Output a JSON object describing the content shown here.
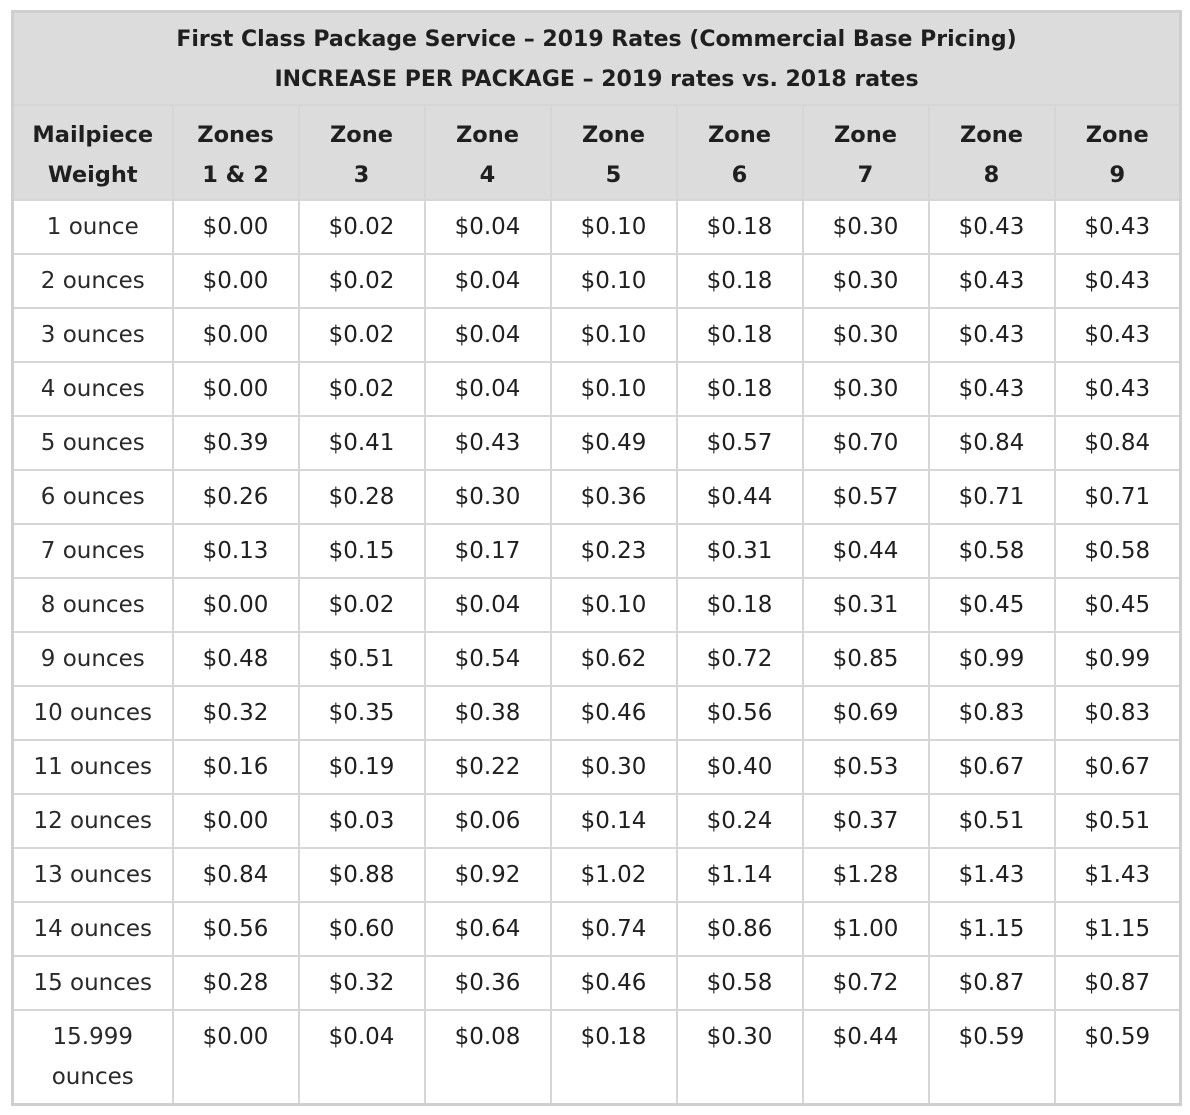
{
  "title": {
    "line1": "First Class Package Service – 2019 Rates (Commercial Base Pricing)",
    "line2": "INCREASE PER PACKAGE – 2019 rates vs. 2018 rates"
  },
  "headers": [
    {
      "line1": "Mailpiece",
      "line2": "Weight"
    },
    {
      "line1": "Zones",
      "line2": "1 & 2"
    },
    {
      "line1": "Zone",
      "line2": "3"
    },
    {
      "line1": "Zone",
      "line2": "4"
    },
    {
      "line1": "Zone",
      "line2": "5"
    },
    {
      "line1": "Zone",
      "line2": "6"
    },
    {
      "line1": "Zone",
      "line2": "7"
    },
    {
      "line1": "Zone",
      "line2": "8"
    },
    {
      "line1": "Zone",
      "line2": "9"
    }
  ],
  "rows": [
    {
      "weight": "1 ounce",
      "values": [
        "$0.00",
        "$0.02",
        "$0.04",
        "$0.10",
        "$0.18",
        "$0.30",
        "$0.43",
        "$0.43"
      ]
    },
    {
      "weight": "2 ounces",
      "values": [
        "$0.00",
        "$0.02",
        "$0.04",
        "$0.10",
        "$0.18",
        "$0.30",
        "$0.43",
        "$0.43"
      ]
    },
    {
      "weight": "3 ounces",
      "values": [
        "$0.00",
        "$0.02",
        "$0.04",
        "$0.10",
        "$0.18",
        "$0.30",
        "$0.43",
        "$0.43"
      ]
    },
    {
      "weight": "4 ounces",
      "values": [
        "$0.00",
        "$0.02",
        "$0.04",
        "$0.10",
        "$0.18",
        "$0.30",
        "$0.43",
        "$0.43"
      ]
    },
    {
      "weight": "5 ounces",
      "values": [
        "$0.39",
        "$0.41",
        "$0.43",
        "$0.49",
        "$0.57",
        "$0.70",
        "$0.84",
        "$0.84"
      ]
    },
    {
      "weight": "6 ounces",
      "values": [
        "$0.26",
        "$0.28",
        "$0.30",
        "$0.36",
        "$0.44",
        "$0.57",
        "$0.71",
        "$0.71"
      ]
    },
    {
      "weight": "7 ounces",
      "values": [
        "$0.13",
        "$0.15",
        "$0.17",
        "$0.23",
        "$0.31",
        "$0.44",
        "$0.58",
        "$0.58"
      ]
    },
    {
      "weight": "8 ounces",
      "values": [
        "$0.00",
        "$0.02",
        "$0.04",
        "$0.10",
        "$0.18",
        "$0.31",
        "$0.45",
        "$0.45"
      ]
    },
    {
      "weight": "9 ounces",
      "values": [
        "$0.48",
        "$0.51",
        "$0.54",
        "$0.62",
        "$0.72",
        "$0.85",
        "$0.99",
        "$0.99"
      ]
    },
    {
      "weight": "10 ounces",
      "values": [
        "$0.32",
        "$0.35",
        "$0.38",
        "$0.46",
        "$0.56",
        "$0.69",
        "$0.83",
        "$0.83"
      ]
    },
    {
      "weight": "11 ounces",
      "values": [
        "$0.16",
        "$0.19",
        "$0.22",
        "$0.30",
        "$0.40",
        "$0.53",
        "$0.67",
        "$0.67"
      ]
    },
    {
      "weight": "12 ounces",
      "values": [
        "$0.00",
        "$0.03",
        "$0.06",
        "$0.14",
        "$0.24",
        "$0.37",
        "$0.51",
        "$0.51"
      ]
    },
    {
      "weight": "13 ounces",
      "values": [
        "$0.84",
        "$0.88",
        "$0.92",
        "$1.02",
        "$1.14",
        "$1.28",
        "$1.43",
        "$1.43"
      ]
    },
    {
      "weight": "14 ounces",
      "values": [
        "$0.56",
        "$0.60",
        "$0.64",
        "$0.74",
        "$0.86",
        "$1.00",
        "$1.15",
        "$1.15"
      ]
    },
    {
      "weight": "15 ounces",
      "values": [
        "$0.28",
        "$0.32",
        "$0.36",
        "$0.46",
        "$0.58",
        "$0.72",
        "$0.87",
        "$0.87"
      ]
    },
    {
      "weight": "15.999 ounces",
      "values": [
        "$0.00",
        "$0.04",
        "$0.08",
        "$0.18",
        "$0.30",
        "$0.44",
        "$0.59",
        "$0.59"
      ]
    }
  ]
}
